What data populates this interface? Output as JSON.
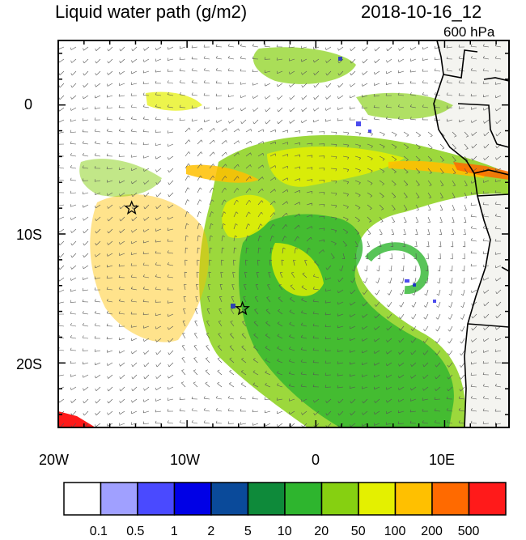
{
  "map": {
    "title": "Liquid water path (g/m2)",
    "datetime": "2018-10-16_12",
    "level": "600 hPa",
    "lon_labels": [
      "20W",
      "10W",
      "0",
      "10E"
    ],
    "lat_labels": [
      "0",
      "10S",
      "20S"
    ],
    "extent": {
      "lon": [
        -20,
        15
      ],
      "lat": [
        -25,
        5
      ]
    },
    "markers": [
      {
        "symbol": "star",
        "lon": -14.3,
        "lat": -8.0
      },
      {
        "symbol": "star",
        "lon": -5.7,
        "lat": -15.8
      }
    ],
    "features": [
      "coastline",
      "country-borders",
      "wind-barbs"
    ]
  },
  "colorbar": {
    "labels": [
      "0.1",
      "0.5",
      "1",
      "2",
      "5",
      "10",
      "20",
      "50",
      "100",
      "200",
      "500"
    ],
    "colors": [
      "#ffffff",
      "#a0a0ff",
      "#4a4aff",
      "#0000e6",
      "#0a4a9a",
      "#0e8a3a",
      "#2eb52e",
      "#86d011",
      "#e4f000",
      "#ffc000",
      "#ff6a00",
      "#ff1a1a"
    ]
  }
}
